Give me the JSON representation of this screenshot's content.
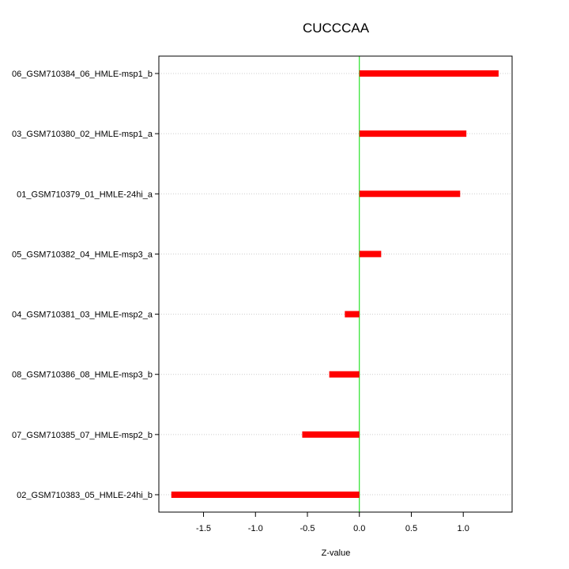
{
  "chart_data": {
    "type": "bar",
    "orientation": "horizontal",
    "title": "CUCCCAA",
    "xlabel": "Z-value",
    "ylabel": "",
    "categories": [
      "06_GSM710384_06_HMLE-msp1_b",
      "03_GSM710380_02_HMLE-msp1_a",
      "01_GSM710379_01_HMLE-24hi_a",
      "05_GSM710382_04_HMLE-msp3_a",
      "04_GSM710381_03_HMLE-msp2_a",
      "08_GSM710386_08_HMLE-msp3_b",
      "07_GSM710385_07_HMLE-msp2_b",
      "02_GSM710383_05_HMLE-24hi_b"
    ],
    "values": [
      1.34,
      1.03,
      0.97,
      0.21,
      -0.14,
      -0.29,
      -0.55,
      -1.81
    ],
    "xlim": [
      -1.93,
      1.47
    ],
    "xticks": [
      -1.5,
      -1.0,
      -0.5,
      0.0,
      0.5,
      1.0
    ],
    "xtick_labels": [
      "-1.5",
      "-1.0",
      "-0.5",
      "0.0",
      "0.5",
      "1.0"
    ],
    "reference_line": 0,
    "grid": "horizontal-dotted",
    "bar_color": "#ff0000",
    "reference_line_color": "#00dd00"
  }
}
